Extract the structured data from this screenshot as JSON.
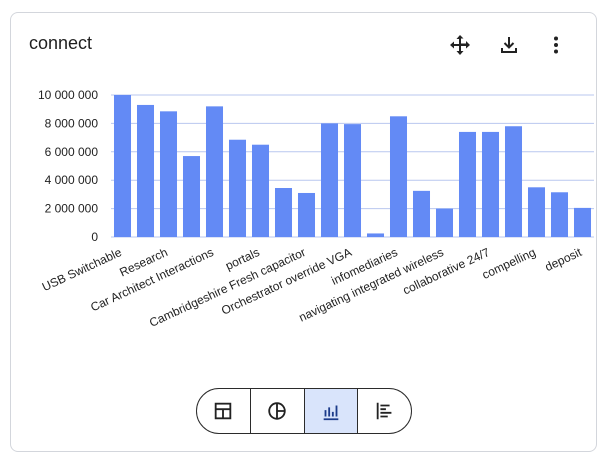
{
  "card": {
    "title": "connect"
  },
  "toolbar": {
    "icons": [
      "move-icon",
      "download-icon",
      "more-vert-icon"
    ]
  },
  "view_switcher": {
    "options": [
      "table-icon",
      "pie-chart-icon",
      "bar-chart-icon",
      "horizontal-bar-chart-icon"
    ],
    "active": "bar-chart-icon"
  },
  "colors": {
    "bar": "#638af5",
    "grid": "#b9c7ef",
    "active_segment": "#d9e4fb"
  },
  "chart_data": {
    "type": "bar",
    "categories": [
      "USB Switchable",
      "",
      "Research",
      "",
      "Car Architect Interactions",
      "",
      "portals",
      "",
      "Cambridgeshire Fresh capacitor",
      "",
      "Orchestrator override VGA",
      "",
      "infomediaries",
      "",
      "navigating integrated wireless",
      "",
      "collaborative 24/7",
      "",
      "compelling",
      "",
      "deposit"
    ],
    "values": [
      10000000,
      9300000,
      8850000,
      5700000,
      9200000,
      6850000,
      6500000,
      3450000,
      3100000,
      8000000,
      7950000,
      250000,
      8500000,
      3250000,
      2000000,
      7400000,
      7400000,
      7800000,
      3500000,
      3150000,
      2050000
    ],
    "y_ticks": [
      "0",
      "2 000 000",
      "4 000 000",
      "6 000 000",
      "8 000 000",
      "10 000 000"
    ],
    "ylim": [
      0,
      10000000
    ],
    "grid": true
  }
}
